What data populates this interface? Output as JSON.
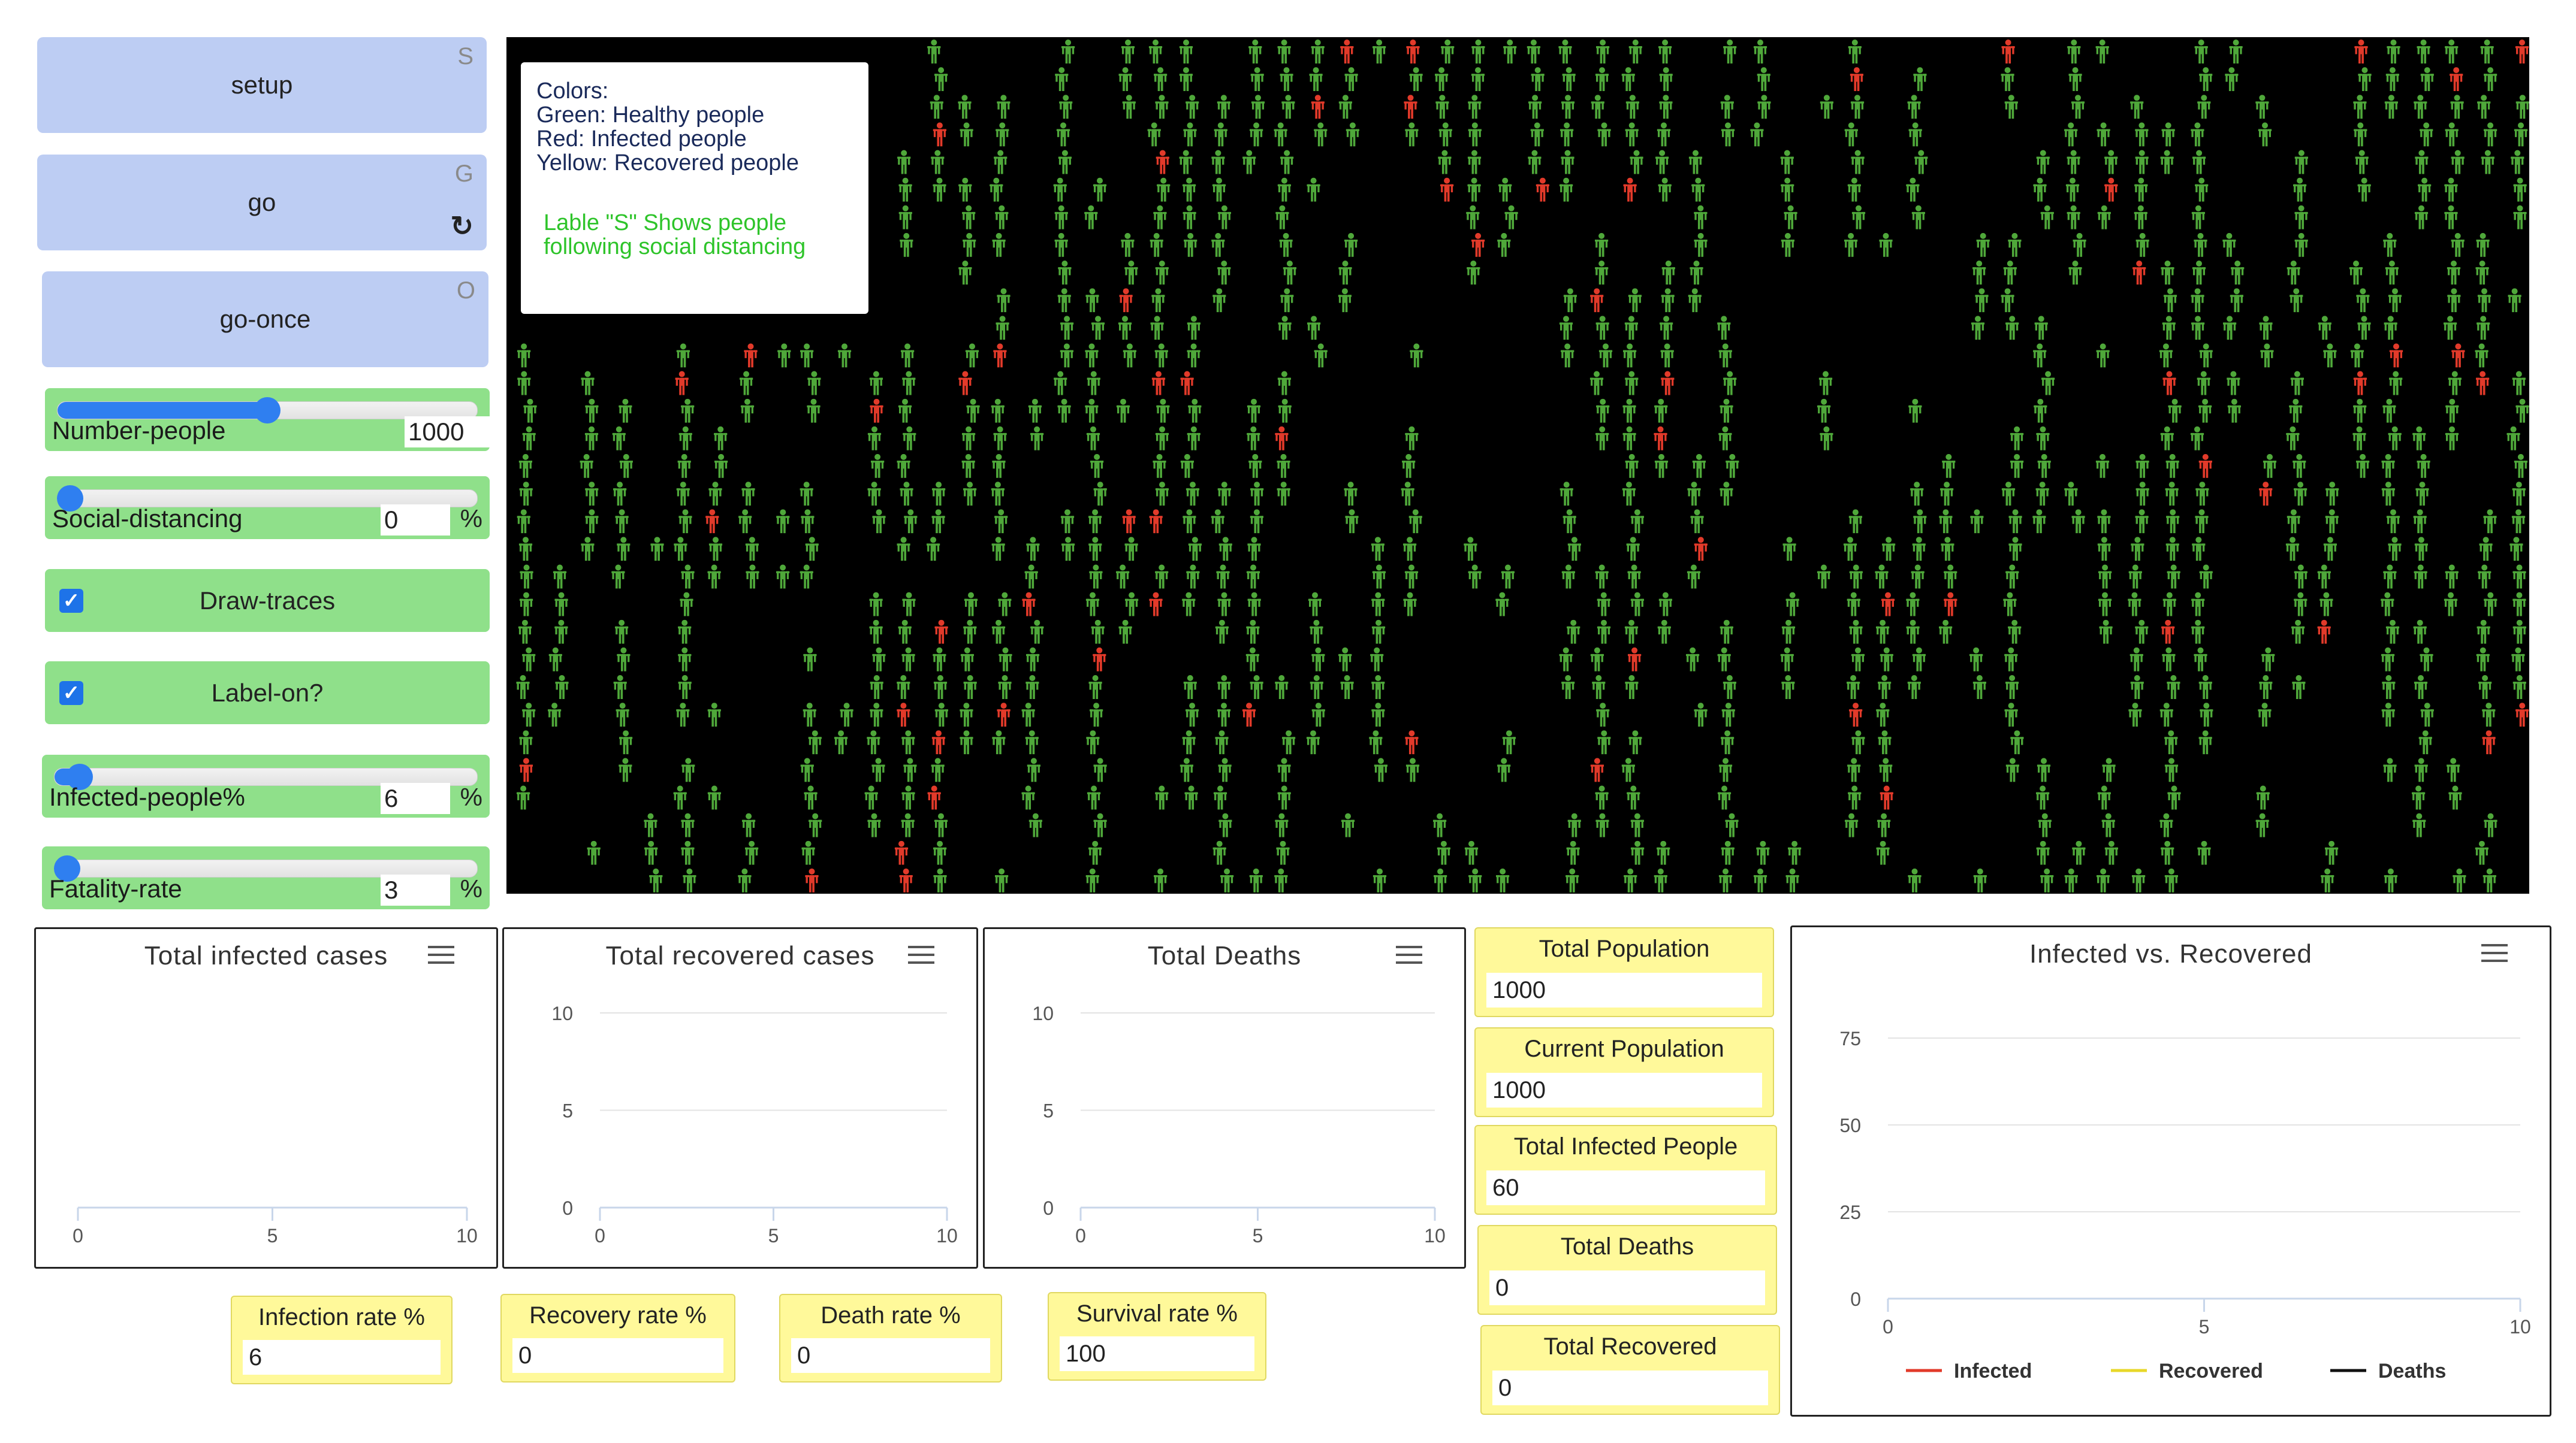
{
  "buttons": {
    "setup": {
      "label": "setup",
      "key": "S"
    },
    "go": {
      "label": "go",
      "key": "G",
      "forever_icon": "refresh-icon"
    },
    "go_once": {
      "label": "go-once",
      "key": "O"
    }
  },
  "sliders": {
    "number_people": {
      "label": "Number-people",
      "value": "1000",
      "unit": "",
      "fraction": 0.5
    },
    "social_distancing": {
      "label": "Social-distancing",
      "value": "0",
      "unit": "%",
      "fraction": 0.0
    },
    "infected_people": {
      "label": "Infected-people%",
      "value": "6",
      "unit": "%",
      "fraction": 0.06
    },
    "fatality_rate": {
      "label": "Fatality-rate",
      "value": "3",
      "unit": "%",
      "fraction": 0.03
    }
  },
  "switches": {
    "draw_traces": {
      "label": "Draw-traces",
      "checked": true
    },
    "label_on": {
      "label": "Label-on?",
      "checked": true
    }
  },
  "world": {
    "note_lines": [
      "Colors:",
      "Green: Healthy people",
      "Red: Infected people",
      "Yellow: Recovered people"
    ],
    "note_green_lines": [
      "Lable \"S\" Shows people",
      "following social distancing"
    ],
    "colors": {
      "background": "#000000",
      "healthy": "#4fa83a",
      "infected": "#e23a2a"
    }
  },
  "plots": {
    "infected": {
      "title": "Total infected cases",
      "xticks": [
        "0",
        "5",
        "10"
      ],
      "yticks": []
    },
    "recovered": {
      "title": "Total recovered cases",
      "xticks": [
        "0",
        "5",
        "10"
      ],
      "yticks": [
        "10",
        "5",
        "0"
      ]
    },
    "deaths": {
      "title": "Total Deaths",
      "xticks": [
        "0",
        "5",
        "10"
      ],
      "yticks": [
        "10",
        "5",
        "0"
      ]
    },
    "vs": {
      "title": "Infected vs. Recovered",
      "xticks": [
        "0",
        "5",
        "10"
      ],
      "yticks": [
        "75",
        "50",
        "25",
        "0"
      ],
      "legend": [
        {
          "name": "Infected",
          "color": "#e23a2a"
        },
        {
          "name": "Recovered",
          "color": "#e8d82a"
        },
        {
          "name": "Deaths",
          "color": "#111111"
        }
      ]
    }
  },
  "monitors": {
    "total_population": {
      "label": "Total Population",
      "value": "1000"
    },
    "current_population": {
      "label": "Current Population",
      "value": "1000"
    },
    "total_infected": {
      "label": "Total Infected People",
      "value": "60"
    },
    "total_deaths": {
      "label": "Total Deaths",
      "value": "0"
    },
    "total_recovered": {
      "label": "Total Recovered",
      "value": "0"
    },
    "infection_rate": {
      "label": "Infection rate %",
      "value": "6"
    },
    "recovery_rate": {
      "label": "Recovery rate %",
      "value": "0"
    },
    "death_rate": {
      "label": "Death rate %",
      "value": "0"
    },
    "survival_rate": {
      "label": "Survival rate %",
      "value": "100"
    }
  }
}
